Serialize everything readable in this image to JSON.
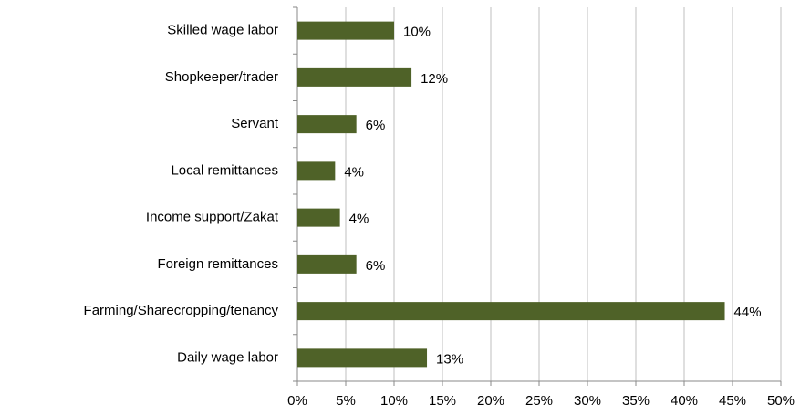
{
  "chart_data": {
    "type": "bar",
    "orientation": "horizontal",
    "categories": [
      "Skilled wage labor",
      "Shopkeeper/trader",
      "Servant",
      "Local remittances",
      "Income support/Zakat",
      "Foreign remittances",
      "Farming/Sharecropping/tenancy",
      "Daily wage labor"
    ],
    "values": [
      10,
      11.8,
      6.1,
      3.9,
      4.4,
      6.1,
      44.2,
      13.4
    ],
    "value_labels": [
      "10%",
      "12%",
      "6%",
      "4%",
      "4%",
      "6%",
      "44%",
      "13%"
    ],
    "color": "#4f6228",
    "xlim": [
      0,
      50
    ],
    "xticks": [
      {
        "value": 0,
        "label": "0%"
      },
      {
        "value": 5,
        "label": "5%"
      },
      {
        "value": 10,
        "label": "10%"
      },
      {
        "value": 15,
        "label": "15%"
      },
      {
        "value": 20,
        "label": "20%"
      },
      {
        "value": 25,
        "label": "25%"
      },
      {
        "value": 30,
        "label": "30%"
      },
      {
        "value": 35,
        "label": "35%"
      },
      {
        "value": 40,
        "label": "40%"
      },
      {
        "value": 45,
        "label": "45%"
      },
      {
        "value": 50,
        "label": "50%"
      }
    ],
    "grid": true
  }
}
